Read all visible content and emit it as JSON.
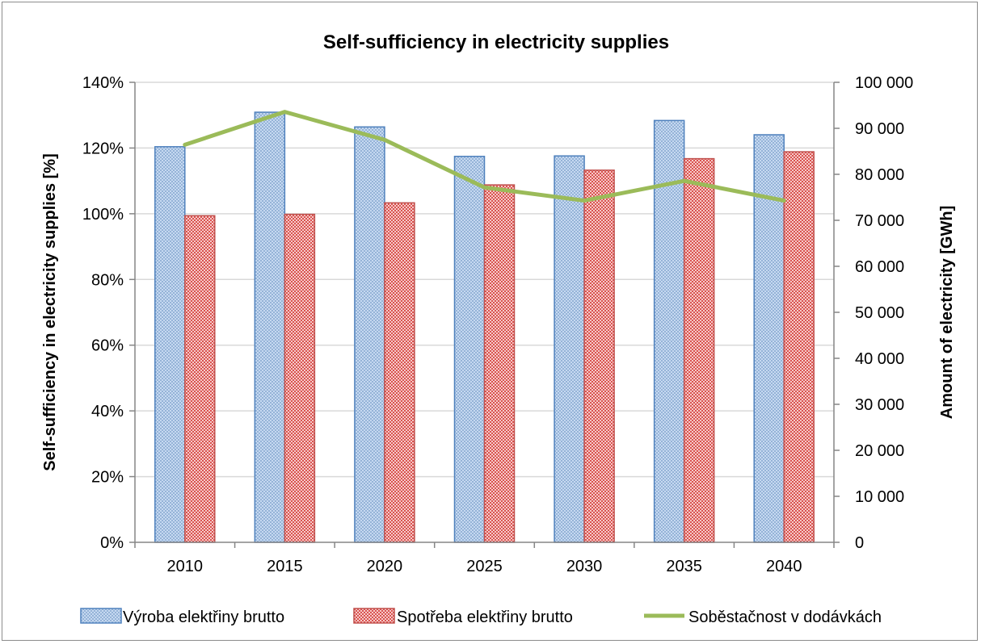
{
  "chart_data": {
    "type": "bar",
    "title": "Self-sufficiency in electricity supplies",
    "categories": [
      "2010",
      "2015",
      "2020",
      "2025",
      "2030",
      "2035",
      "2040"
    ],
    "series": [
      {
        "name": "Výroba elektřiny brutto",
        "kind": "bar",
        "axis": "right",
        "values": [
          86000,
          93500,
          90300,
          83900,
          84000,
          91700,
          88600
        ],
        "color": "#4f81bd",
        "fill": "#c6d9f1"
      },
      {
        "name": "Spotřeba elektřiny brutto",
        "kind": "bar",
        "axis": "right",
        "values": [
          71000,
          71300,
          73800,
          77700,
          80900,
          83400,
          84900
        ],
        "color": "#c0504d",
        "fill": "#f2b8b8"
      },
      {
        "name": "Soběstačnost v dodávkách",
        "kind": "line",
        "axis": "left",
        "values": [
          121,
          131,
          122.5,
          108,
          104,
          110,
          104
        ],
        "color": "#9bbb59"
      }
    ],
    "y_left": {
      "label": "Self-sufficiency in electricity supplies [%]",
      "ticks": [
        "0%",
        "20%",
        "40%",
        "60%",
        "80%",
        "100%",
        "120%",
        "140%"
      ],
      "range": [
        0,
        140
      ]
    },
    "y_right": {
      "label": "Amount of electricity [GWh]",
      "ticks": [
        "0",
        "10 000",
        "20 000",
        "30 000",
        "40 000",
        "50 000",
        "60 000",
        "70 000",
        "80 000",
        "90 000",
        "100 000"
      ],
      "range": [
        0,
        100000
      ]
    },
    "grid": true,
    "legend": "bottom"
  }
}
